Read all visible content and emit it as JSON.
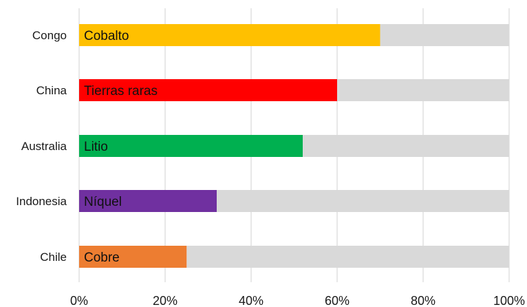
{
  "chart_data": {
    "type": "bar",
    "orientation": "horizontal",
    "stacked_with_remainder": true,
    "remainder_color": "#d9d9d9",
    "categories": [
      "Congo",
      "China",
      "Australia",
      "Indonesia",
      "Chile"
    ],
    "bars": [
      {
        "country": "Congo",
        "label": "Cobalto",
        "value": 70,
        "color": "#ffc000"
      },
      {
        "country": "China",
        "label": "Tierras raras",
        "value": 60,
        "color": "#ff0000"
      },
      {
        "country": "Australia",
        "label": "Litio",
        "value": 52,
        "color": "#00b050"
      },
      {
        "country": "Indonesia",
        "label": "Níquel",
        "value": 32,
        "color": "#7030a0"
      },
      {
        "country": "Chile",
        "label": "Cobre",
        "value": 25,
        "color": "#ed7d31"
      }
    ],
    "xlim": [
      0,
      100
    ],
    "x_ticks": [
      "0%",
      "20%",
      "40%",
      "60%",
      "80%",
      "100%"
    ],
    "x_tick_values": [
      0,
      20,
      40,
      60,
      80,
      100
    ],
    "grid": true,
    "title": "",
    "xlabel": "",
    "ylabel": ""
  }
}
